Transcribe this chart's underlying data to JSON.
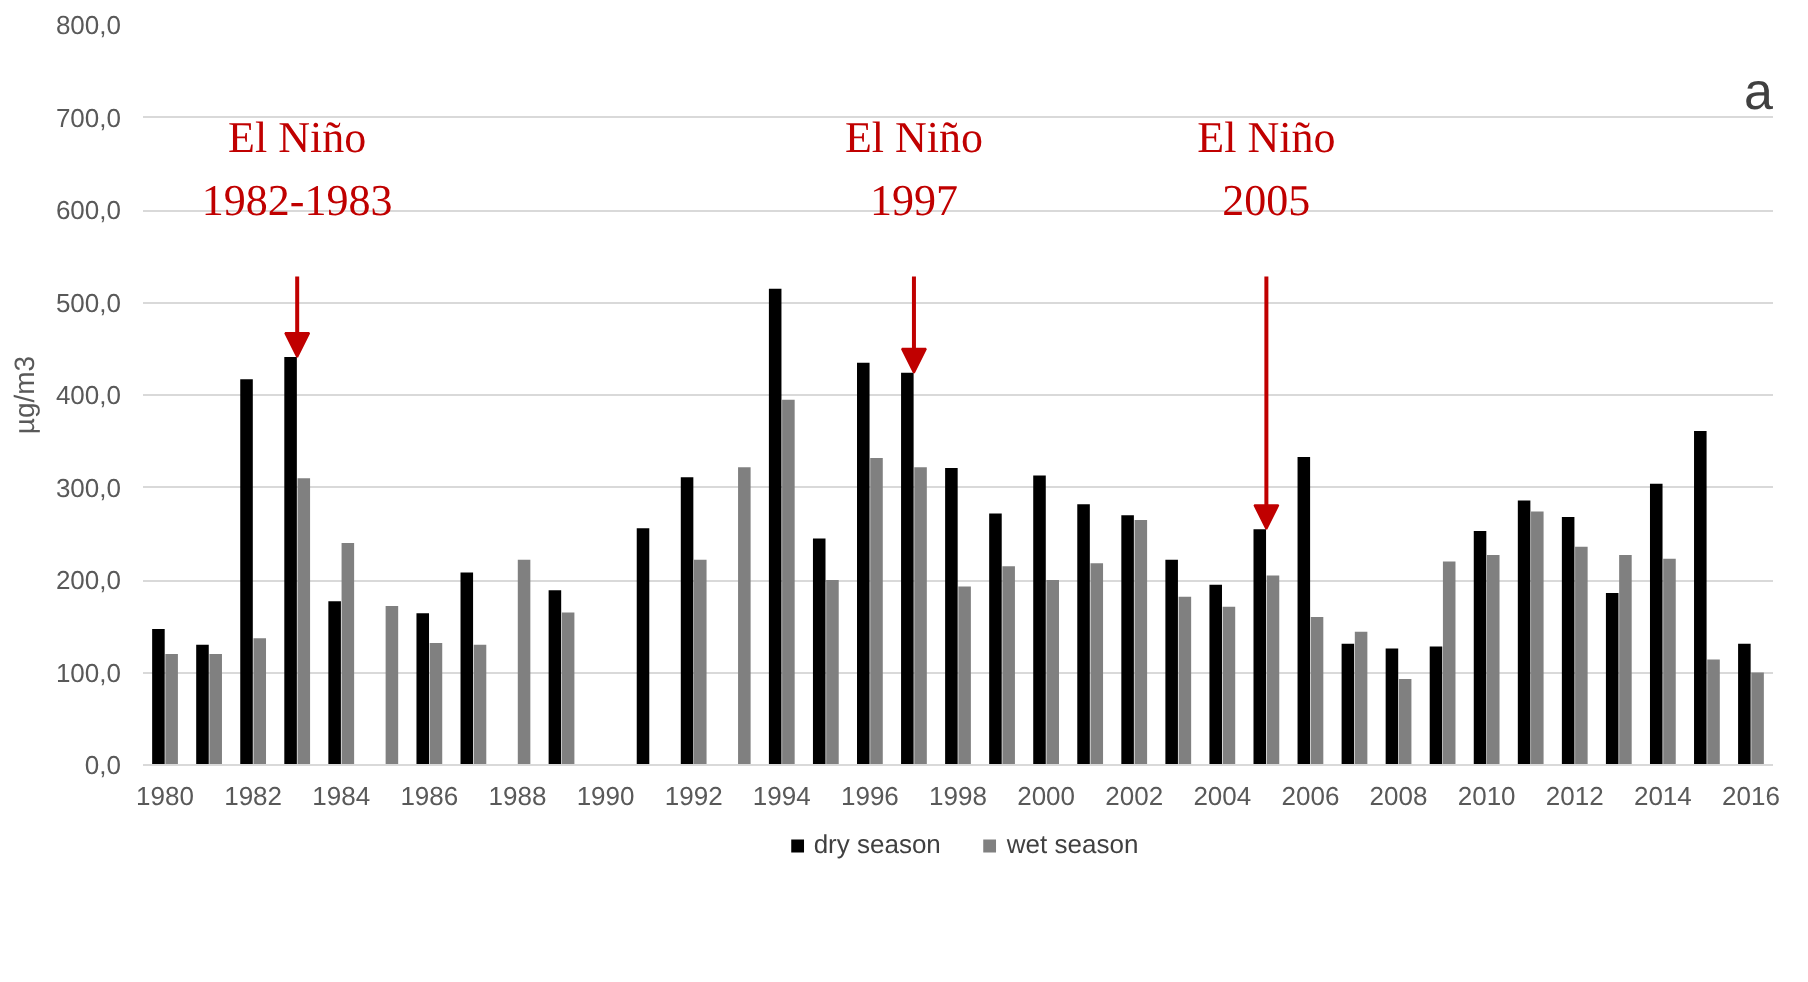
{
  "chart_data": {
    "type": "bar",
    "ylabel": "µg/m3",
    "x": [
      1980,
      1981,
      1982,
      1983,
      1984,
      1985,
      1986,
      1987,
      1988,
      1989,
      1990,
      1991,
      1992,
      1993,
      1994,
      1995,
      1996,
      1997,
      1998,
      1999,
      2000,
      2001,
      2002,
      2003,
      2004,
      2005,
      2006,
      2007,
      2008,
      2009,
      2010,
      2011,
      2012,
      2013,
      2014,
      2015,
      2016
    ],
    "series": [
      {
        "name": "dry season",
        "color": "#000000",
        "values": [
          147,
          130,
          417,
          441,
          177,
          null,
          164,
          208,
          null,
          189,
          null,
          256,
          311,
          null,
          515,
          245,
          435,
          424,
          321,
          272,
          313,
          282,
          270,
          222,
          195,
          255,
          333,
          131,
          126,
          128,
          253,
          286,
          268,
          186,
          304,
          361,
          131
        ]
      },
      {
        "name": "wet season",
        "color": "#808080",
        "values": [
          120,
          120,
          137,
          310,
          240,
          172,
          132,
          130,
          222,
          165,
          null,
          null,
          222,
          322,
          395,
          200,
          332,
          322,
          193,
          215,
          200,
          218,
          265,
          182,
          171,
          205,
          160,
          144,
          93,
          220,
          227,
          274,
          236,
          227,
          223,
          114,
          100
        ]
      }
    ],
    "xlim": [
      1979.5,
      2016.5
    ],
    "xticks": [
      1980,
      1982,
      1984,
      1986,
      1988,
      1990,
      1992,
      1994,
      1996,
      1998,
      2000,
      2002,
      2004,
      2006,
      2008,
      2010,
      2012,
      2014,
      2016
    ],
    "ylim": [
      0,
      800
    ],
    "yticks": [
      {
        "value": 0,
        "label": "0,0"
      },
      {
        "value": 100,
        "label": "100,0"
      },
      {
        "value": 200,
        "label": "200,0"
      },
      {
        "value": 300,
        "label": "300,0"
      },
      {
        "value": 400,
        "label": "400,0"
      },
      {
        "value": 500,
        "label": "500,0"
      },
      {
        "value": 600,
        "label": "600,0"
      },
      {
        "value": 700,
        "label": "700,0"
      },
      {
        "value": 800,
        "label": "800,0"
      }
    ],
    "grid": "y",
    "legend": "bottom",
    "annotations": [
      {
        "text": "El Niño\n1982-1983",
        "x": 1983,
        "y": 441
      },
      {
        "text": "El Niño\n1997",
        "x": 1997,
        "y": 424
      },
      {
        "text": "El Niño\n2005",
        "x": 2005,
        "y": 255
      },
      "a"
    ]
  }
}
